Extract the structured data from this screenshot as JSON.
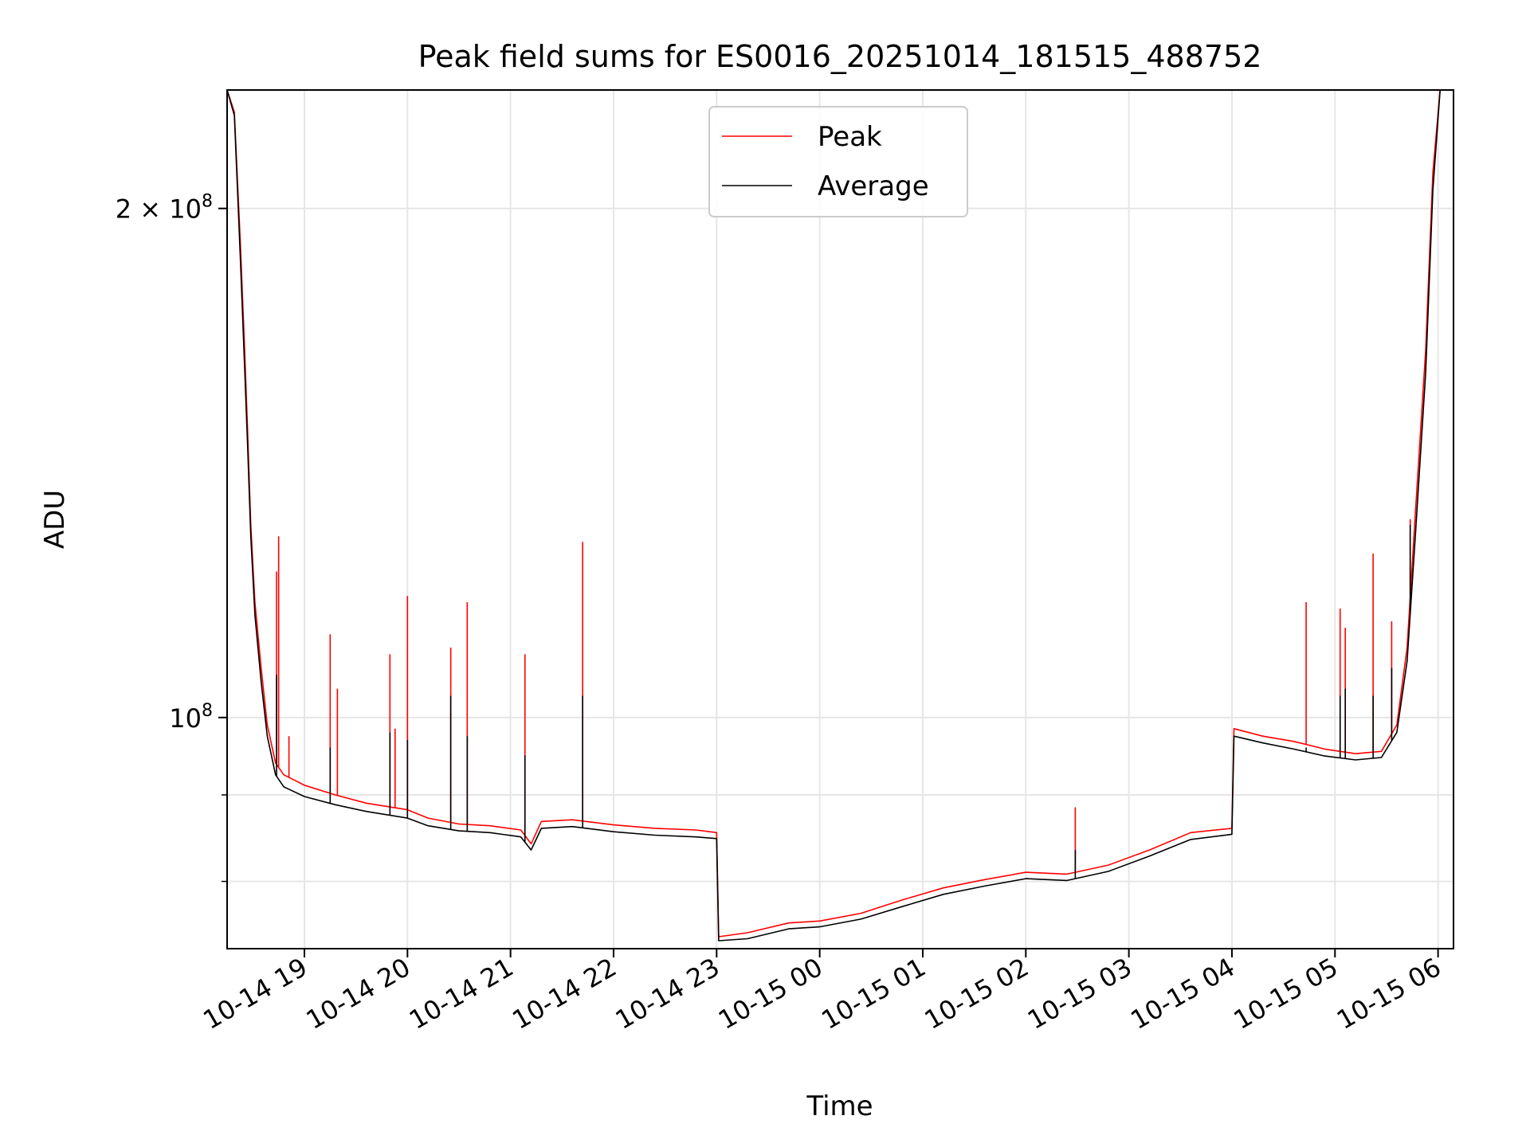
{
  "chart_data": {
    "type": "line",
    "title": "Peak field sums for ES0016_20251014_181515_488752",
    "xlabel": "Time",
    "ylabel": "ADU",
    "yscale": "log",
    "ylim": [
      73000000,
      235000000
    ],
    "xlim_hours": [
      -0.75,
      11.15
    ],
    "x_origin": "10-14 19",
    "x_ticks": [
      {
        "h": 0,
        "label": "10-14 19"
      },
      {
        "h": 1,
        "label": "10-14 20"
      },
      {
        "h": 2,
        "label": "10-14 21"
      },
      {
        "h": 3,
        "label": "10-14 22"
      },
      {
        "h": 4,
        "label": "10-14 23"
      },
      {
        "h": 5,
        "label": "10-15 00"
      },
      {
        "h": 6,
        "label": "10-15 01"
      },
      {
        "h": 7,
        "label": "10-15 02"
      },
      {
        "h": 8,
        "label": "10-15 03"
      },
      {
        "h": 9,
        "label": "10-15 04"
      },
      {
        "h": 10,
        "label": "10-15 05"
      },
      {
        "h": 11,
        "label": "10-15 06"
      }
    ],
    "y_major_ticks": [
      {
        "v": 100000000,
        "base": "10",
        "exp": "8"
      },
      {
        "v": 200000000,
        "base": "2 × 10",
        "exp": "8"
      }
    ],
    "y_minor_ticks": [
      80000000,
      90000000
    ],
    "grid": true,
    "legend_position": "top-center",
    "series": [
      {
        "name": "Peak",
        "color": "#ff0000",
        "points": [
          [
            -0.75,
            235000000
          ],
          [
            -0.68,
            228000000
          ],
          [
            -0.62,
            190000000
          ],
          [
            -0.58,
            165000000
          ],
          [
            -0.55,
            147000000
          ],
          [
            -0.52,
            130000000
          ],
          [
            -0.48,
            117000000
          ],
          [
            -0.42,
            107000000
          ],
          [
            -0.36,
            99000000
          ],
          [
            -0.28,
            94000000
          ],
          [
            -0.2,
            92500000
          ],
          [
            0,
            91200000
          ],
          [
            0.3,
            90000000
          ],
          [
            0.6,
            89000000
          ],
          [
            1.0,
            88200000
          ],
          [
            1.2,
            87200000
          ],
          [
            1.5,
            86500000
          ],
          [
            1.8,
            86300000
          ],
          [
            2.1,
            85800000
          ],
          [
            2.2,
            84200000
          ],
          [
            2.3,
            86800000
          ],
          [
            2.6,
            87000000
          ],
          [
            3.0,
            86400000
          ],
          [
            3.4,
            86000000
          ],
          [
            3.8,
            85800000
          ],
          [
            4.0,
            85500000
          ],
          [
            4.02,
            74200000
          ],
          [
            4.3,
            74600000
          ],
          [
            4.7,
            75600000
          ],
          [
            5.0,
            75800000
          ],
          [
            5.4,
            76600000
          ],
          [
            5.8,
            78000000
          ],
          [
            6.2,
            79300000
          ],
          [
            6.6,
            80200000
          ],
          [
            7.0,
            81000000
          ],
          [
            7.4,
            80800000
          ],
          [
            7.8,
            81800000
          ],
          [
            8.2,
            83500000
          ],
          [
            8.6,
            85500000
          ],
          [
            9.0,
            86000000
          ],
          [
            9.02,
            98500000
          ],
          [
            9.3,
            97500000
          ],
          [
            9.6,
            96800000
          ],
          [
            9.9,
            95800000
          ],
          [
            10.2,
            95200000
          ],
          [
            10.45,
            95500000
          ],
          [
            10.6,
            99000000
          ],
          [
            10.7,
            110000000
          ],
          [
            10.78,
            132000000
          ],
          [
            10.88,
            165000000
          ],
          [
            10.95,
            210000000
          ],
          [
            11.02,
            235000000
          ]
        ],
        "spikes": [
          [
            -0.27,
            122000000
          ],
          [
            -0.25,
            128000000
          ],
          [
            -0.15,
            97500000
          ],
          [
            0.25,
            112000000
          ],
          [
            0.32,
            104000000
          ],
          [
            0.83,
            109000000
          ],
          [
            0.88,
            98500000
          ],
          [
            1.0,
            118000000
          ],
          [
            1.42,
            110000000
          ],
          [
            1.58,
            117000000
          ],
          [
            2.14,
            109000000
          ],
          [
            2.7,
            127000000
          ],
          [
            7.48,
            88500000
          ],
          [
            9.72,
            117000000
          ],
          [
            10.05,
            116000000
          ],
          [
            10.1,
            113000000
          ],
          [
            10.37,
            125000000
          ],
          [
            10.55,
            114000000
          ],
          [
            10.73,
            131000000
          ]
        ]
      },
      {
        "name": "Average",
        "color": "#000000",
        "points": [
          [
            -0.75,
            235000000
          ],
          [
            -0.68,
            227000000
          ],
          [
            -0.62,
            186000000
          ],
          [
            -0.58,
            161000000
          ],
          [
            -0.55,
            144000000
          ],
          [
            -0.52,
            128000000
          ],
          [
            -0.48,
            115000000
          ],
          [
            -0.42,
            105000000
          ],
          [
            -0.36,
            97500000
          ],
          [
            -0.28,
            92500000
          ],
          [
            -0.2,
            91000000
          ],
          [
            0,
            89800000
          ],
          [
            0.3,
            88800000
          ],
          [
            0.6,
            88000000
          ],
          [
            1.0,
            87200000
          ],
          [
            1.2,
            86300000
          ],
          [
            1.5,
            85700000
          ],
          [
            1.8,
            85500000
          ],
          [
            2.1,
            85000000
          ],
          [
            2.2,
            83500000
          ],
          [
            2.3,
            86000000
          ],
          [
            2.6,
            86200000
          ],
          [
            3.0,
            85600000
          ],
          [
            3.4,
            85200000
          ],
          [
            3.8,
            85000000
          ],
          [
            4.0,
            84800000
          ],
          [
            4.02,
            73800000
          ],
          [
            4.3,
            74000000
          ],
          [
            4.7,
            75000000
          ],
          [
            5.0,
            75200000
          ],
          [
            5.4,
            76000000
          ],
          [
            5.8,
            77300000
          ],
          [
            6.2,
            78600000
          ],
          [
            6.6,
            79500000
          ],
          [
            7.0,
            80300000
          ],
          [
            7.4,
            80100000
          ],
          [
            7.8,
            81100000
          ],
          [
            8.2,
            82800000
          ],
          [
            8.6,
            84700000
          ],
          [
            9.0,
            85300000
          ],
          [
            9.02,
            97500000
          ],
          [
            9.3,
            96600000
          ],
          [
            9.6,
            95800000
          ],
          [
            9.9,
            94900000
          ],
          [
            10.2,
            94400000
          ],
          [
            10.45,
            94700000
          ],
          [
            10.6,
            98000000
          ],
          [
            10.7,
            108000000
          ],
          [
            10.78,
            128000000
          ],
          [
            10.88,
            160000000
          ],
          [
            10.95,
            205000000
          ],
          [
            11.02,
            235000000
          ]
        ],
        "spikes": [
          [
            -0.27,
            106000000
          ],
          [
            0.25,
            96000000
          ],
          [
            0.83,
            98000000
          ],
          [
            1.0,
            97000000
          ],
          [
            1.42,
            103000000
          ],
          [
            1.58,
            97500000
          ],
          [
            2.14,
            95000000
          ],
          [
            2.7,
            103000000
          ],
          [
            7.48,
            83500000
          ],
          [
            9.72,
            96000000
          ],
          [
            10.05,
            103000000
          ],
          [
            10.1,
            104000000
          ],
          [
            10.37,
            103000000
          ],
          [
            10.55,
            107000000
          ],
          [
            10.73,
            130000000
          ]
        ]
      }
    ]
  }
}
